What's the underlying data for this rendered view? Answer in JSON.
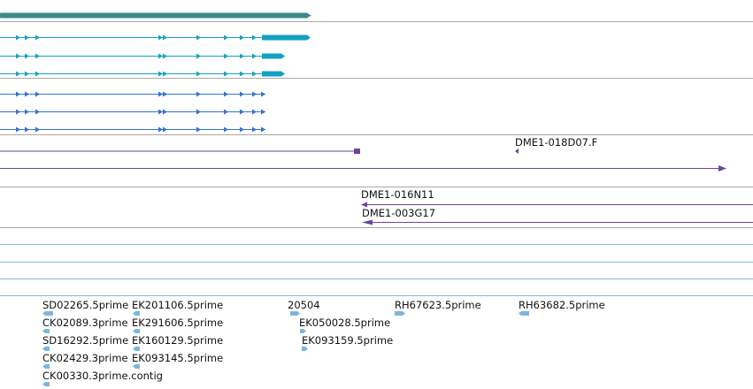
{
  "colors": {
    "background": "#ffffff",
    "separator": "#a8a8a8",
    "gene_teal": "#3a8b8d",
    "transcript_cyan": "#13a3bf",
    "transcript_blue": "#3572cf",
    "clone_purple": "#6b469a",
    "empty_track_line": "#7fc3cf",
    "est_blue": "#7db6dd"
  },
  "tracks": {
    "gene_model": {
      "icon": "gene-bar",
      "features": [
        {
          "name": "gene-model-bar"
        }
      ]
    },
    "transcripts_cyan": {
      "features": [
        {
          "name": "transcript-cyan-1",
          "has_cds_block": true
        },
        {
          "name": "transcript-cyan-2",
          "has_cds_block": true
        },
        {
          "name": "transcript-cyan-3",
          "has_cds_block": true
        }
      ]
    },
    "transcripts_blue": {
      "features": [
        {
          "name": "transcript-blue-1"
        },
        {
          "name": "transcript-blue-2"
        },
        {
          "name": "transcript-blue-3"
        }
      ]
    },
    "clones": {
      "labels": {
        "clone_a": "DME1-018D07.F",
        "clone_c": "DME1-016N11",
        "clone_d": "DME1-003G17"
      }
    },
    "empty_tracks": {
      "count": 4
    },
    "est_alignments": {
      "labels": [
        "SD02265.5prime",
        "EK201106.5prime",
        "20504",
        "RH67623.5prime",
        "RH63682.5prime",
        "CK02089.3prime",
        "EK291606.5prime",
        "EK050028.5prime",
        "SD16292.5prime",
        "EK160129.5prime",
        "EK093159.5prime",
        "CK02429.3prime",
        "EK093145.5prime",
        "CK00330.3prime.contig"
      ]
    }
  }
}
